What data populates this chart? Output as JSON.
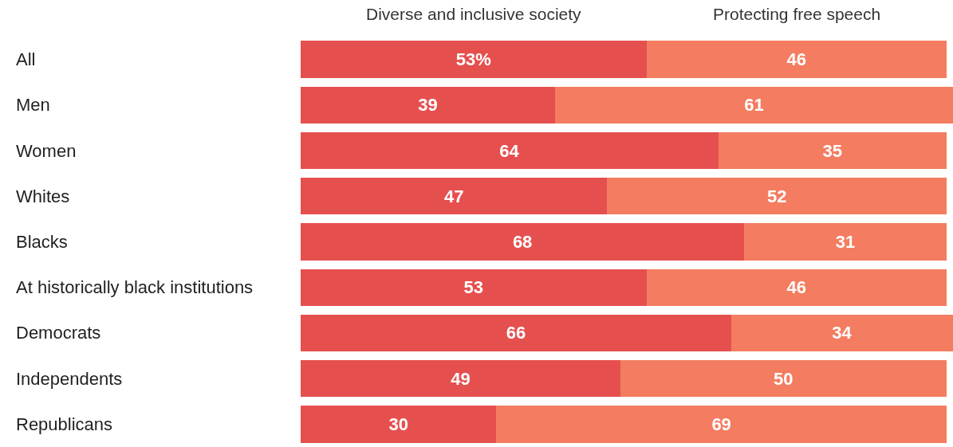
{
  "chart_data": {
    "type": "bar",
    "orientation": "horizontal",
    "stacked": true,
    "xlim": [
      0,
      100
    ],
    "tick_labels": "y",
    "grid": false,
    "legend": false,
    "categories": [
      "All",
      "Men",
      "Women",
      "Whites",
      "Blacks",
      "At historically black institutions",
      "Democrats",
      "Independents",
      "Republicans"
    ],
    "series": [
      {
        "name": "Diverse and inclusive society",
        "color": "#e5504f",
        "values": [
          53,
          39,
          64,
          47,
          68,
          53,
          66,
          49,
          30
        ],
        "value_labels": [
          "53%",
          "39",
          "64",
          "47",
          "68",
          "53",
          "66",
          "49",
          "30"
        ]
      },
      {
        "name": "Protecting free speech",
        "color": "#f47c60",
        "values": [
          46,
          61,
          35,
          52,
          31,
          46,
          34,
          50,
          69
        ],
        "value_labels": [
          "46",
          "61",
          "35",
          "52",
          "31",
          "46",
          "34",
          "50",
          "69"
        ]
      }
    ]
  }
}
